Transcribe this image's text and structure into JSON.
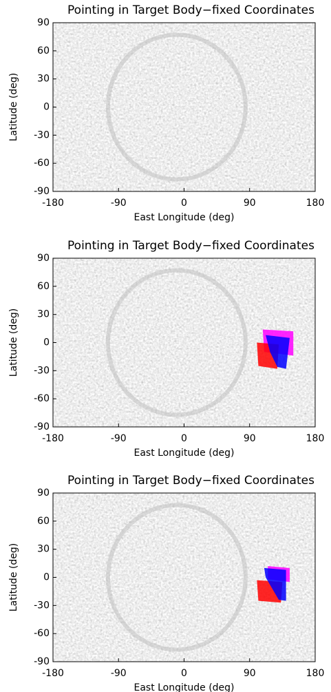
{
  "chart_data": [
    {
      "type": "map",
      "title": "Pointing in Target Body−fixed Coordinates",
      "xlabel": "East Longitude (deg)",
      "ylabel": "Latitude (deg)",
      "xlim": [
        -180,
        180
      ],
      "ylim": [
        -90,
        90
      ],
      "xticks": [
        -180,
        -90,
        0,
        90,
        180
      ],
      "yticks": [
        -90,
        -60,
        -30,
        0,
        30,
        60,
        90
      ],
      "regions": []
    },
    {
      "type": "map",
      "title": "Pointing in Target Body−fixed Coordinates",
      "xlabel": "East Longitude (deg)",
      "ylabel": "Latitude (deg)",
      "xlim": [
        -180,
        180
      ],
      "ylim": [
        -90,
        90
      ],
      "xticks": [
        -180,
        -90,
        0,
        90,
        180
      ],
      "yticks": [
        -90,
        -60,
        -30,
        0,
        30,
        60,
        90
      ],
      "regions": [
        {
          "color": "#ff00ff",
          "lon": [
            108,
            150,
            150,
            110
          ],
          "lat": [
            14,
            12,
            -14,
            -10
          ]
        },
        {
          "color": "#ff0000",
          "lon": [
            100,
            130,
            128,
            102
          ],
          "lat": [
            0,
            -2,
            -28,
            -25
          ]
        },
        {
          "color": "#0000ff",
          "lon": [
            112,
            145,
            140,
            128,
            118
          ],
          "lat": [
            8,
            5,
            -28,
            -26,
            -10
          ]
        }
      ]
    },
    {
      "type": "map",
      "title": "Pointing in Target Body−fixed Coordinates",
      "xlabel": "East Longitude (deg)",
      "ylabel": "Latitude (deg)",
      "xlim": [
        -180,
        180
      ],
      "ylim": [
        -90,
        90
      ],
      "xticks": [
        -180,
        -90,
        0,
        90,
        180
      ],
      "yticks": [
        -90,
        -60,
        -30,
        0,
        30,
        60,
        90
      ],
      "regions": [
        {
          "color": "#ff00ff",
          "lon": [
            115,
            145,
            145,
            115
          ],
          "lat": [
            12,
            10,
            -5,
            -2
          ]
        },
        {
          "color": "#ff0000",
          "lon": [
            100,
            135,
            133,
            102
          ],
          "lat": [
            -3,
            -5,
            -27,
            -25
          ]
        },
        {
          "color": "#0000ff",
          "lon": [
            110,
            140,
            140,
            130,
            112
          ],
          "lat": [
            10,
            8,
            -25,
            -24,
            0
          ]
        }
      ]
    }
  ]
}
